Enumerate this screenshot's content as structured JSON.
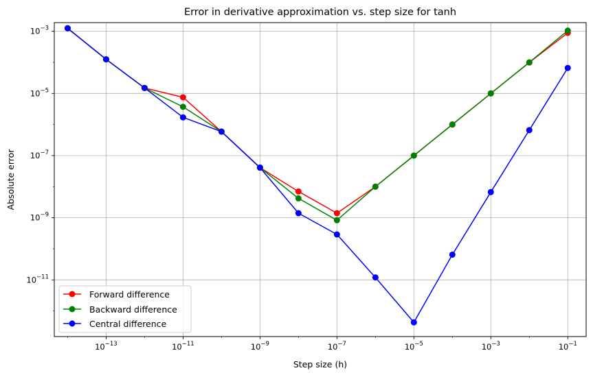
{
  "chart_data": {
    "type": "line",
    "title": "Error in derivative approximation vs. step size for tanh",
    "xlabel": "Step size (h)",
    "ylabel": "Absolute error",
    "xscale": "log",
    "yscale": "log",
    "xlim": [
      4.5e-15,
      0.3
    ],
    "ylim": [
      1.5e-13,
      0.0019
    ],
    "grid": true,
    "legend": "lower-left",
    "x_ticks": [
      {
        "value": 1e-13,
        "base": "10",
        "exp": "−13"
      },
      {
        "value": 1e-11,
        "base": "10",
        "exp": "−11"
      },
      {
        "value": 1e-09,
        "base": "10",
        "exp": "−9"
      },
      {
        "value": 1e-07,
        "base": "10",
        "exp": "−7"
      },
      {
        "value": 1e-05,
        "base": "10",
        "exp": "−5"
      },
      {
        "value": 0.001,
        "base": "10",
        "exp": "−3"
      },
      {
        "value": 0.1,
        "base": "10",
        "exp": "−1"
      }
    ],
    "y_ticks": [
      {
        "value": 1e-11,
        "base": "10",
        "exp": "−11"
      },
      {
        "value": 1e-09,
        "base": "10",
        "exp": "−9"
      },
      {
        "value": 1e-07,
        "base": "10",
        "exp": "−7"
      },
      {
        "value": 1e-05,
        "base": "10",
        "exp": "−5"
      },
      {
        "value": 0.001,
        "base": "10",
        "exp": "−3"
      }
    ],
    "x": [
      1e-14,
      1e-13,
      1e-12,
      1e-11,
      1e-10,
      1e-09,
      1e-08,
      1e-07,
      1e-06,
      1e-05,
      0.0001,
      0.001,
      0.01,
      0.1
    ],
    "series": [
      {
        "name": "Forward difference",
        "color": "#ff0000",
        "values": [
          0.00125,
          0.000125,
          1.5e-05,
          7.5e-06,
          5.9e-07,
          4.1e-08,
          7e-09,
          1.4e-09,
          1e-08,
          1e-07,
          1e-06,
          1e-05,
          9.9e-05,
          0.00089
        ]
      },
      {
        "name": "Backward difference",
        "color": "#008000",
        "values": [
          0.00125,
          0.000125,
          1.5e-05,
          3.7e-06,
          5.9e-07,
          4.1e-08,
          4.2e-09,
          8.3e-10,
          1e-08,
          1e-07,
          1e-06,
          1e-05,
          0.0001,
          0.00105
        ]
      },
      {
        "name": "Central difference",
        "color": "#0000ff",
        "values": [
          0.00125,
          0.000125,
          1.5e-05,
          1.7e-06,
          5.9e-07,
          4.1e-08,
          1.4e-09,
          2.9e-10,
          1.2e-11,
          4.3e-13,
          6.5e-11,
          6.7e-09,
          6.6e-07,
          6.6e-05
        ]
      }
    ]
  }
}
